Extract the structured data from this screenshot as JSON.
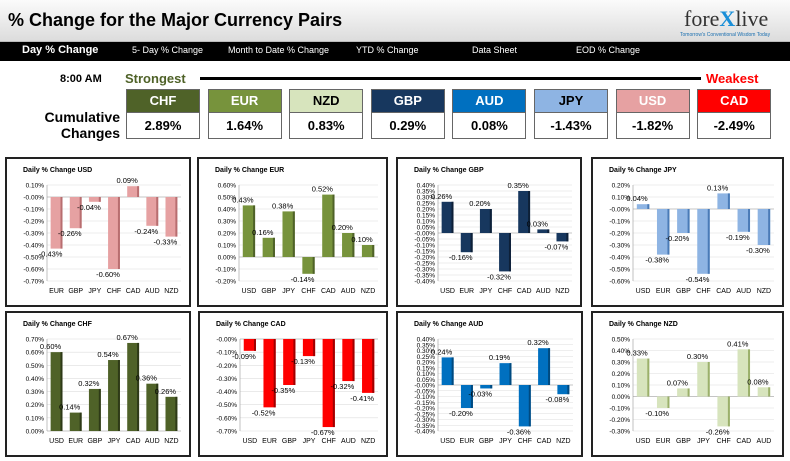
{
  "header": {
    "title": "% Change for the Major Currency Pairs",
    "logo_brand_a": "fore",
    "logo_brand_x": "X",
    "logo_brand_b": "live",
    "logo_tagline": "Tomorrow's Conventional Wisdom Today"
  },
  "tabs": [
    {
      "label": "Day % Change"
    },
    {
      "label": "5- Day % Change"
    },
    {
      "label": "Month to Date % Change"
    },
    {
      "label": "YTD % Change"
    },
    {
      "label": "Data Sheet"
    },
    {
      "label": "EOD % Change"
    }
  ],
  "summary": {
    "time": "8:00 AM",
    "strongest_label": "Strongest",
    "weakest_label": "Weakest",
    "cumulative_label_1": "Cumulative",
    "cumulative_label_2": "Changes",
    "currencies": [
      {
        "code": "CHF",
        "value": "2.89%",
        "bg": "#4f6228",
        "fg": "#ffffff"
      },
      {
        "code": "EUR",
        "value": "1.64%",
        "bg": "#77933c",
        "fg": "#ffffff"
      },
      {
        "code": "NZD",
        "value": "0.83%",
        "bg": "#d7e4bd",
        "fg": "#000000"
      },
      {
        "code": "GBP",
        "value": "0.29%",
        "bg": "#17375e",
        "fg": "#ffffff"
      },
      {
        "code": "AUD",
        "value": "0.08%",
        "bg": "#0070c0",
        "fg": "#ffffff"
      },
      {
        "code": "JPY",
        "value": "-1.43%",
        "bg": "#8eb4e3",
        "fg": "#000000"
      },
      {
        "code": "USD",
        "value": "-1.82%",
        "bg": "#e6a1a2",
        "fg": "#ffffff"
      },
      {
        "code": "CAD",
        "value": "-2.49%",
        "bg": "#ff0000",
        "fg": "#ffffff"
      }
    ]
  },
  "chart_data": [
    {
      "type": "bar",
      "title": "Daily % Change USD",
      "categories": [
        "EUR",
        "GBP",
        "JPY",
        "CHF",
        "CAD",
        "AUD",
        "NZD"
      ],
      "values": [
        -0.43,
        -0.26,
        -0.04,
        -0.6,
        0.09,
        -0.24,
        -0.33
      ],
      "ylim": [
        -0.7,
        0.1
      ],
      "step": 0.1,
      "color": "#e6a1a2",
      "dark": "#b86e70"
    },
    {
      "type": "bar",
      "title": "Daily % Change EUR",
      "categories": [
        "USD",
        "GBP",
        "JPY",
        "CHF",
        "CAD",
        "AUD",
        "NZD"
      ],
      "values": [
        0.43,
        0.16,
        0.38,
        -0.14,
        0.52,
        0.2,
        0.1
      ],
      "ylim": [
        -0.2,
        0.6
      ],
      "step": 0.1,
      "color": "#77933c",
      "dark": "#4f6228"
    },
    {
      "type": "bar",
      "title": "Daily % Change GBP",
      "categories": [
        "USD",
        "EUR",
        "JPY",
        "CHF",
        "CAD",
        "AUD",
        "NZD"
      ],
      "values": [
        0.26,
        -0.16,
        0.2,
        -0.32,
        0.35,
        0.03,
        -0.07
      ],
      "ylim": [
        -0.4,
        0.4
      ],
      "step": 0.05,
      "color": "#17375e",
      "dark": "#0d2038"
    },
    {
      "type": "bar",
      "title": "Daily % Change JPY",
      "categories": [
        "USD",
        "EUR",
        "GBP",
        "CHF",
        "CAD",
        "AUD",
        "NZD"
      ],
      "values": [
        0.04,
        -0.38,
        -0.2,
        -0.54,
        0.13,
        -0.19,
        -0.3
      ],
      "ylim": [
        -0.6,
        0.2
      ],
      "step": 0.1,
      "color": "#8eb4e3",
      "dark": "#4a7bb7"
    },
    {
      "type": "bar",
      "title": "Daily % Change CHF",
      "categories": [
        "USD",
        "EUR",
        "GBP",
        "JPY",
        "CAD",
        "AUD",
        "NZD"
      ],
      "values": [
        0.6,
        0.14,
        0.32,
        0.54,
        0.67,
        0.36,
        0.26
      ],
      "ylim": [
        0.0,
        0.7
      ],
      "step": 0.1,
      "color": "#4f6228",
      "dark": "#2e3a17"
    },
    {
      "type": "bar",
      "title": "Daily % Change CAD",
      "categories": [
        "USD",
        "EUR",
        "GBP",
        "JPY",
        "CHF",
        "AUD",
        "NZD"
      ],
      "values": [
        -0.09,
        -0.52,
        -0.35,
        -0.13,
        -0.67,
        -0.32,
        -0.41
      ],
      "ylim": [
        -0.7,
        0.0
      ],
      "step": 0.1,
      "color": "#ff0000",
      "dark": "#a00000"
    },
    {
      "type": "bar",
      "title": "Daily % Change AUD",
      "categories": [
        "USD",
        "EUR",
        "GBP",
        "JPY",
        "CHF",
        "CAD",
        "NZD"
      ],
      "values": [
        0.24,
        -0.2,
        -0.03,
        0.19,
        -0.36,
        0.32,
        -0.08
      ],
      "ylim": [
        -0.4,
        0.4
      ],
      "step": 0.05,
      "color": "#0070c0",
      "dark": "#004a80"
    },
    {
      "type": "bar",
      "title": "Daily % Change NZD",
      "categories": [
        "USD",
        "EUR",
        "GBP",
        "JPY",
        "CHF",
        "CAD",
        "AUD"
      ],
      "values": [
        0.33,
        -0.1,
        0.07,
        0.3,
        -0.26,
        0.41,
        0.08
      ],
      "ylim": [
        -0.3,
        0.5
      ],
      "step": 0.1,
      "color": "#d7e4bd",
      "dark": "#9bb06b"
    }
  ]
}
